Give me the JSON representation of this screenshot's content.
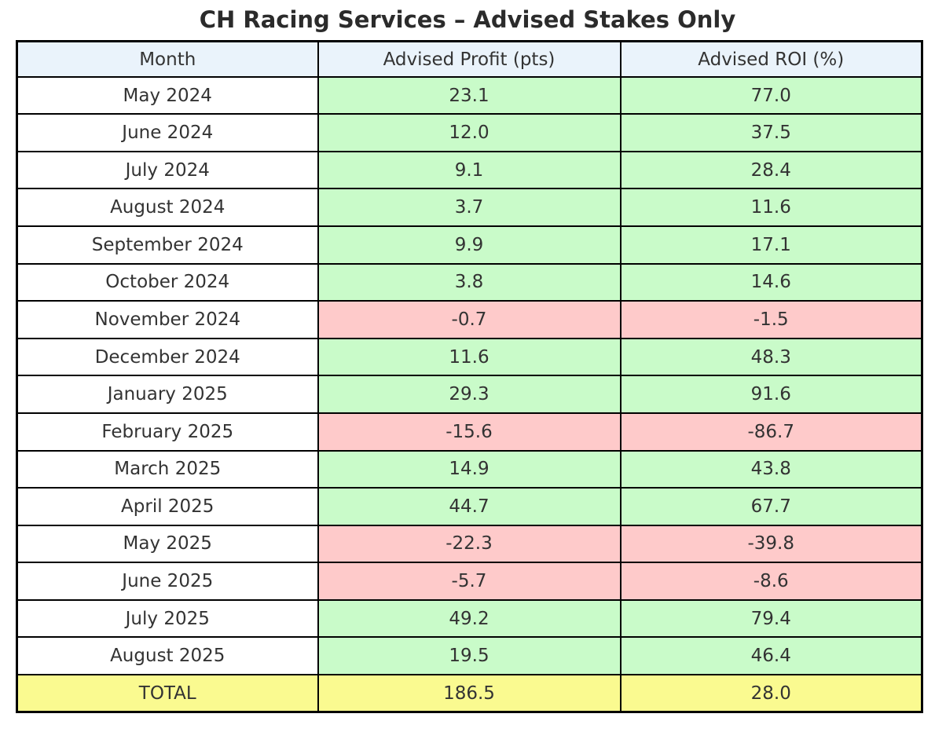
{
  "title": "CH Racing Services – Advised Stakes Only",
  "table": {
    "headers": [
      "Month",
      "Advised Profit (pts)",
      "Advised ROI (%)"
    ],
    "rows": [
      {
        "month": "May 2024",
        "profit": "23.1",
        "roi": "77.0",
        "status": "positive"
      },
      {
        "month": "June 2024",
        "profit": "12.0",
        "roi": "37.5",
        "status": "positive"
      },
      {
        "month": "July 2024",
        "profit": "9.1",
        "roi": "28.4",
        "status": "positive"
      },
      {
        "month": "August 2024",
        "profit": "3.7",
        "roi": "11.6",
        "status": "positive"
      },
      {
        "month": "September 2024",
        "profit": "9.9",
        "roi": "17.1",
        "status": "positive"
      },
      {
        "month": "October 2024",
        "profit": "3.8",
        "roi": "14.6",
        "status": "positive"
      },
      {
        "month": "November 2024",
        "profit": "-0.7",
        "roi": "-1.5",
        "status": "negative"
      },
      {
        "month": "December 2024",
        "profit": "11.6",
        "roi": "48.3",
        "status": "positive"
      },
      {
        "month": "January 2025",
        "profit": "29.3",
        "roi": "91.6",
        "status": "positive"
      },
      {
        "month": "February 2025",
        "profit": "-15.6",
        "roi": "-86.7",
        "status": "negative"
      },
      {
        "month": "March 2025",
        "profit": "14.9",
        "roi": "43.8",
        "status": "positive"
      },
      {
        "month": "April 2025",
        "profit": "44.7",
        "roi": "67.7",
        "status": "positive"
      },
      {
        "month": "May 2025",
        "profit": "-22.3",
        "roi": "-39.8",
        "status": "negative"
      },
      {
        "month": "June 2025",
        "profit": "-5.7",
        "roi": "-8.6",
        "status": "negative"
      },
      {
        "month": "July 2025",
        "profit": "49.2",
        "roi": "79.4",
        "status": "positive"
      },
      {
        "month": "August 2025",
        "profit": "19.5",
        "roi": "46.4",
        "status": "positive"
      },
      {
        "month": "TOTAL",
        "profit": "186.5",
        "roi": "28.0",
        "status": "total"
      }
    ]
  },
  "colors": {
    "header_bg": "#eaf3fb",
    "positive_bg": "#c9fbc9",
    "negative_bg": "#fecaca",
    "total_bg": "#fafa90",
    "month_bg": "#ffffff",
    "border": "#000000",
    "text": "#333333",
    "title_text": "#2b2b2b"
  },
  "chart_data": {
    "type": "table",
    "title": "CH Racing Services – Advised Stakes Only",
    "columns": [
      "Month",
      "Advised Profit (pts)",
      "Advised ROI (%)"
    ],
    "rows": [
      [
        "May 2024",
        23.1,
        77.0
      ],
      [
        "June 2024",
        12.0,
        37.5
      ],
      [
        "July 2024",
        9.1,
        28.4
      ],
      [
        "August 2024",
        3.7,
        11.6
      ],
      [
        "September 2024",
        9.9,
        17.1
      ],
      [
        "October 2024",
        3.8,
        14.6
      ],
      [
        "November 2024",
        -0.7,
        -1.5
      ],
      [
        "December 2024",
        11.6,
        48.3
      ],
      [
        "January 2025",
        29.3,
        91.6
      ],
      [
        "February 2025",
        -15.6,
        -86.7
      ],
      [
        "March 2025",
        14.9,
        43.8
      ],
      [
        "April 2025",
        44.7,
        67.7
      ],
      [
        "May 2025",
        -22.3,
        -39.8
      ],
      [
        "June 2025",
        -5.7,
        -8.6
      ],
      [
        "July 2025",
        49.2,
        79.4
      ],
      [
        "August 2025",
        19.5,
        46.4
      ]
    ],
    "total_row": [
      "TOTAL",
      186.5,
      28.0
    ],
    "cell_color_encoding": "green = positive month, red = negative month, yellow = total row"
  }
}
